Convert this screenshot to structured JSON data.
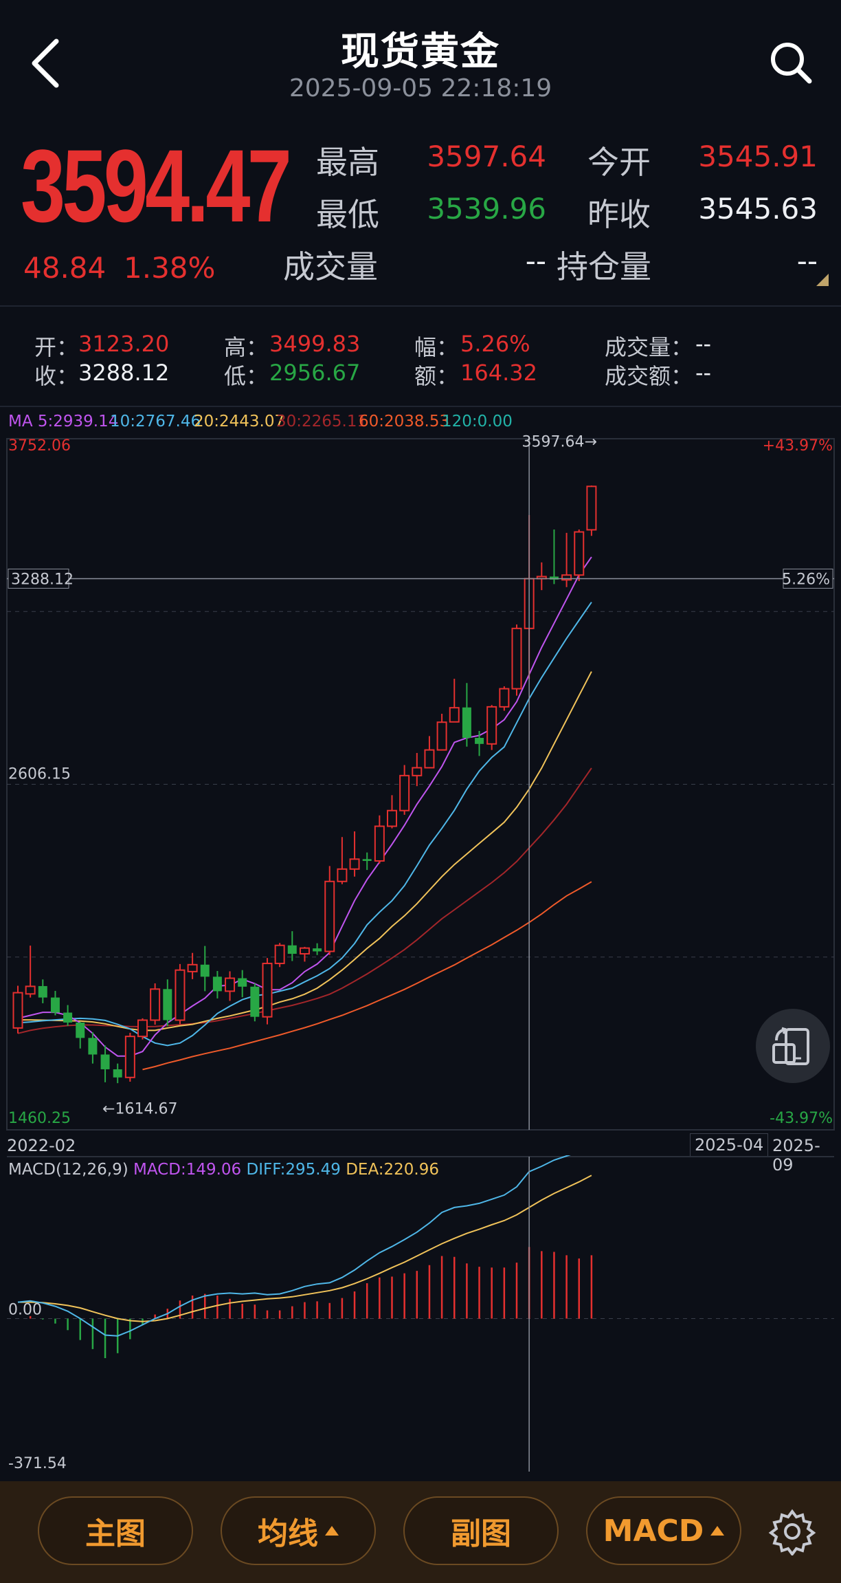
{
  "header": {
    "title": "现货黄金",
    "timestamp": "2025-09-05 22:18:19",
    "back_icon": "chevron-left-icon",
    "search_icon": "search-icon"
  },
  "quote": {
    "price": "3594.47",
    "change": "48.84",
    "change_pct": "1.38%",
    "high_label": "最高",
    "high": "3597.64",
    "open_label": "今开",
    "open": "3545.91",
    "low_label": "最低",
    "low": "3539.96",
    "prev_close_label": "昨收",
    "prev_close": "3545.63",
    "volume_label": "成交量",
    "volume": "--",
    "open_interest_label": "持仓量",
    "open_interest": "--"
  },
  "ohlc": {
    "open_label": "开：",
    "open": "3123.20",
    "close_label": "收：",
    "close": "3288.12",
    "high_label": "高：",
    "high": "3499.83",
    "low_label": "低：",
    "low": "2956.67",
    "amp_label": "幅：",
    "amp": "5.26%",
    "amt_label": "额：",
    "amt": "164.32",
    "vol_label": "成交量：",
    "vol": "--",
    "turnover_label": "成交额：",
    "turnover": "--"
  },
  "ma_legend": {
    "ma5": "MA 5:2939.14",
    "ma10": "10:2767.46",
    "ma20": "20:2443.07",
    "ma30": "30:2265.11",
    "ma60": "60:2038.53",
    "ma120": "120:0.00"
  },
  "colors": {
    "up": "#e5302f",
    "down": "#28a745",
    "ma5": "#c055ef",
    "ma10": "#4fb7e8",
    "ma20": "#f1c35a",
    "ma30": "#a3262a",
    "ma60": "#ef5a2a",
    "ma120": "#22b3a8"
  },
  "chart_data": {
    "type": "candlestick",
    "y_max_label": "3752.06",
    "y_min_label": "1460.25",
    "y_mid_label": "2606.15",
    "pct_top": "+43.97%",
    "pct_bottom": "-43.97%",
    "crosshair_price": "3288.12",
    "crosshair_pct": "5.26%",
    "max_marker": "3597.64→",
    "min_marker": "←1614.67",
    "date_start": "2022-02",
    "date_cross": "2025-04",
    "date_end": "2025-09",
    "ylim": [
      1460.25,
      3752.06
    ],
    "candles": [
      [
        1798,
        1915,
        1780,
        1938
      ],
      [
        1911,
        1936,
        1899,
        2071
      ],
      [
        1937,
        1899,
        1880,
        1959
      ],
      [
        1899,
        1849,
        1840,
        1921
      ],
      [
        1849,
        1816,
        1805,
        1874
      ],
      [
        1816,
        1765,
        1730,
        1818
      ],
      [
        1765,
        1710,
        1680,
        1784
      ],
      [
        1710,
        1661,
        1618,
        1740
      ],
      [
        1661,
        1634,
        1615,
        1680
      ],
      [
        1634,
        1770,
        1620,
        1782
      ],
      [
        1770,
        1824,
        1760,
        1830
      ],
      [
        1824,
        1927,
        1809,
        1946
      ],
      [
        1927,
        1824,
        1804,
        1959
      ],
      [
        1824,
        1990,
        1810,
        2010
      ],
      [
        1985,
        2008,
        1960,
        2047
      ],
      [
        2008,
        1968,
        1920,
        2070
      ],
      [
        1968,
        1920,
        1896,
        1987
      ],
      [
        1920,
        1963,
        1888,
        1986
      ],
      [
        1963,
        1935,
        1900,
        1990
      ],
      [
        1935,
        1835,
        1820,
        1946
      ],
      [
        1835,
        2012,
        1810,
        2030
      ],
      [
        2012,
        2072,
        2000,
        2080
      ],
      [
        2072,
        2044,
        2020,
        2119
      ],
      [
        2044,
        2063,
        2018,
        2067
      ],
      [
        2062,
        2052,
        2040,
        2079
      ],
      [
        2052,
        2284,
        2040,
        2335
      ],
      [
        2284,
        2325,
        2275,
        2431
      ],
      [
        2325,
        2358,
        2300,
        2450
      ],
      [
        2358,
        2352,
        2322,
        2380
      ],
      [
        2352,
        2467,
        2343,
        2503
      ],
      [
        2467,
        2519,
        2460,
        2570
      ],
      [
        2519,
        2635,
        2505,
        2670
      ],
      [
        2635,
        2661,
        2600,
        2710
      ],
      [
        2661,
        2720,
        2660,
        2766
      ],
      [
        2720,
        2812,
        2725,
        2840
      ],
      [
        2813,
        2860,
        2812,
        2956
      ],
      [
        2861,
        2760,
        2731,
        2942
      ],
      [
        2760,
        2740,
        2700,
        2783
      ],
      [
        2740,
        2863,
        2720,
        2869
      ],
      [
        2863,
        2923,
        2850,
        2931
      ],
      [
        2923,
        3123,
        2900,
        3136
      ],
      [
        3123,
        3288,
        2956,
        3499
      ],
      [
        3288,
        3295,
        3250,
        3342
      ],
      [
        3295,
        3285,
        3270,
        3451
      ],
      [
        3284,
        3300,
        3260,
        3440
      ],
      [
        3300,
        3443,
        3280,
        3451
      ],
      [
        3450,
        3594,
        3430,
        3597
      ]
    ],
    "ma5": [
      1830,
      1840,
      1850,
      1850,
      1840,
      1815,
      1780,
      1735,
      1705,
      1705,
      1720,
      1775,
      1815,
      1843,
      1871,
      1897,
      1937,
      1940,
      1960,
      1945,
      1925,
      1925,
      1948,
      1985,
      2010,
      2048,
      2135,
      2220,
      2290,
      2348,
      2407,
      2470,
      2540,
      2600,
      2665,
      2745,
      2760,
      2768,
      2790,
      2820,
      2880,
      2970,
      3060,
      3140,
      3220,
      3300,
      3360
    ],
    "ma10": [
      1815,
      1818,
      1822,
      1825,
      1828,
      1830,
      1828,
      1823,
      1810,
      1795,
      1770,
      1748,
      1740,
      1748,
      1773,
      1808,
      1846,
      1870,
      1892,
      1905,
      1910,
      1920,
      1930,
      1951,
      1971,
      1995,
      2030,
      2078,
      2140,
      2182,
      2220,
      2270,
      2336,
      2404,
      2460,
      2520,
      2590,
      2650,
      2695,
      2730,
      2810,
      2890,
      2960,
      3025,
      3090,
      3150,
      3210
    ],
    "ma20": [
      1825,
      1825,
      1824,
      1823,
      1822,
      1821,
      1818,
      1812,
      1803,
      1795,
      1790,
      1790,
      1798,
      1805,
      1810,
      1820,
      1830,
      1838,
      1848,
      1858,
      1870,
      1884,
      1895,
      1910,
      1930,
      1958,
      1990,
      2025,
      2062,
      2095,
      2135,
      2170,
      2210,
      2255,
      2300,
      2340,
      2375,
      2410,
      2445,
      2480,
      2530,
      2590,
      2660,
      2740,
      2820,
      2900,
      2980
    ],
    "ma30": [
      1780,
      1790,
      1797,
      1802,
      1806,
      1808,
      1808,
      1806,
      1805,
      1803,
      1802,
      1803,
      1806,
      1809,
      1812,
      1816,
      1822,
      1830,
      1838,
      1846,
      1855,
      1864,
      1873,
      1884,
      1896,
      1910,
      1930,
      1953,
      1977,
      2003,
      2030,
      2058,
      2090,
      2125,
      2160,
      2190,
      2220,
      2250,
      2280,
      2313,
      2350,
      2395,
      2440,
      2488,
      2540,
      2600,
      2660
    ],
    "ma60": [
      null,
      null,
      null,
      null,
      null,
      null,
      null,
      null,
      null,
      null,
      1660,
      1670,
      1682,
      1692,
      1703,
      1713,
      1722,
      1731,
      1742,
      1753,
      1764,
      1775,
      1787,
      1799,
      1812,
      1826,
      1840,
      1856,
      1872,
      1890,
      1908,
      1926,
      1946,
      1967,
      1987,
      2007,
      2030,
      2052,
      2074,
      2098,
      2122,
      2148,
      2176,
      2207,
      2236,
      2259,
      2283
    ]
  },
  "macd": {
    "legend_name": "MACD(12,26,9)",
    "legend_macd": "MACD:149.06",
    "legend_diff": "DIFF:295.49",
    "legend_dea": "DEA:220.96",
    "zero_label": "0.00",
    "min_label": "-371.54",
    "ylim": [
      -371.54,
      380
    ],
    "diff": [
      40,
      43,
      38,
      30,
      18,
      0,
      -20,
      -40,
      -42,
      -30,
      -15,
      0,
      12,
      30,
      45,
      55,
      60,
      62,
      60,
      62,
      58,
      60,
      68,
      78,
      84,
      87,
      100,
      118,
      140,
      160,
      175,
      192,
      210,
      232,
      258,
      270,
      274,
      280,
      290,
      300,
      320,
      357,
      370,
      385,
      395,
      405,
      425
    ],
    "dea": [
      40,
      40,
      39,
      36,
      32,
      26,
      17,
      8,
      0,
      -5,
      -7,
      -5,
      0,
      8,
      17,
      25,
      32,
      38,
      42,
      45,
      48,
      50,
      53,
      58,
      63,
      68,
      75,
      85,
      97,
      110,
      124,
      137,
      152,
      167,
      182,
      195,
      207,
      217,
      228,
      238,
      252,
      270,
      288,
      304,
      318,
      332,
      348
    ]
  },
  "bottom": {
    "main_chart": "主图",
    "ma_line": "均线",
    "sub_chart": "副图",
    "macd": "MACD"
  }
}
